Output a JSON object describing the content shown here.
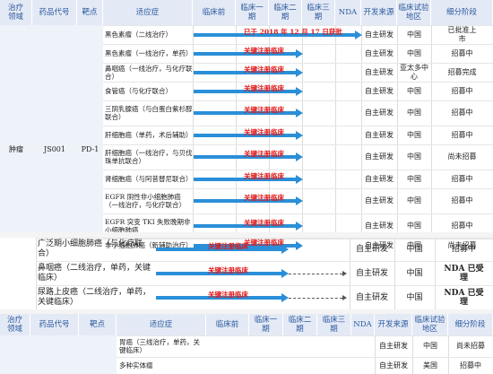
{
  "header": {
    "area": "治疗\n领域",
    "code": "药品代号",
    "target": "靶点",
    "indication": "适应症",
    "pre": "临床前",
    "p1": "临床一\n期",
    "p2": "临床二\n期",
    "p3": "临床三\n期",
    "nda": "NDA",
    "source": "开发来源",
    "region": "临床试验\n地区",
    "stage": "细分阶段"
  },
  "section1": {
    "area": "肿瘤",
    "code": "JS001",
    "target": "PD-1",
    "rows": [
      {
        "ind": "黑色素瘤（二线治疗）",
        "label": "已于 2018 年 12 月 17 日获批",
        "src": "自主研发",
        "reg": "中国",
        "stage": "已批准上\n市"
      },
      {
        "ind": "黑色素瘤（一线治疗，单药）",
        "label": "关键注册临床",
        "src": "自主研发",
        "reg": "中国",
        "stage": "招募中"
      },
      {
        "ind": "鼻咽癌（一线治疗，与化疗联合）",
        "label": "关键注册临床",
        "src": "自主研发",
        "reg": "亚太多中\n心",
        "stage": "招募完成"
      },
      {
        "ind": "食管癌（与化疗联合）",
        "label": "关键注册临床",
        "src": "自主研发",
        "reg": "中国",
        "stage": "招募中"
      },
      {
        "ind": "三阴乳腺癌（与白蛋白紫杉醇联合）",
        "label": "关键注册临床",
        "src": "自主研发",
        "reg": "中国",
        "stage": "招募中"
      },
      {
        "ind": "肝细胞癌（单药，术后辅助）",
        "label": "关键注册临床",
        "src": "自主研发",
        "reg": "中国",
        "stage": "招募中"
      },
      {
        "ind": "肝细胞癌（一线治疗，与贝伐珠单抗联合）",
        "label": "关键注册临床",
        "src": "自主研发",
        "reg": "中国",
        "stage": "尚未招募"
      },
      {
        "ind": "肾细胞癌（与阿昔替尼联合）",
        "label": "关键注册临床",
        "src": "自主研发",
        "reg": "中国",
        "stage": "招募中"
      },
      {
        "ind": "EGFR 阴性非小细胞肺癌（一线治疗，与化疗联合）",
        "label": "关键注册临床",
        "src": "自主研发",
        "reg": "中国",
        "stage": "招募中"
      },
      {
        "ind": "EGFR 突变 TKI 失败晚期非小细胞肺癌",
        "label": "关键注册临床",
        "src": "自主研发",
        "reg": "中国",
        "stage": "招募中"
      },
      {
        "ind": "非小细胞肺癌（新辅助治疗）",
        "label": "关键注册临床",
        "src": "自主研发",
        "reg": "中国",
        "stage": "尚未招募"
      }
    ]
  },
  "section2": {
    "rows": [
      {
        "ind": "广泛期小细胞肺癌（与化疗联合）",
        "label": "关键注册临床",
        "src": "自主研发",
        "reg": "中国",
        "stage": "招募中"
      },
      {
        "ind": "鼻咽癌（二线治疗，单药，关键临床）",
        "label": "关键注册临床",
        "src": "自主研发",
        "reg": "中国",
        "stage": "NDA 已受\n理"
      },
      {
        "ind": "尿路上皮癌（二线治疗，单药，关键临床）",
        "label": "关键注册临床",
        "src": "自主研发",
        "reg": "中国",
        "stage": "NDA 已受\n理"
      }
    ]
  },
  "section3": {
    "rows": [
      {
        "ind": "胃癌（三线治疗，单药，关键临床）",
        "src": "自主研发",
        "reg": "中国",
        "stage": "尚未招募"
      },
      {
        "ind": "多种实体瘤",
        "src": "自主研发",
        "reg": "美国",
        "stage": "招募中"
      }
    ]
  }
}
